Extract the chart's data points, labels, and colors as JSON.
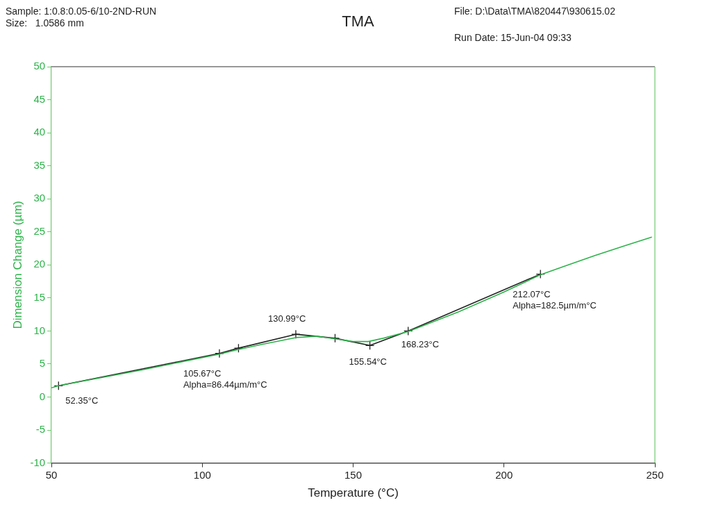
{
  "chart_data": {
    "type": "line",
    "title": "TMA",
    "xlabel": "Temperature (°C)",
    "ylabel": "Dimension Change (µm)",
    "xlim": [
      50,
      250
    ],
    "xticks": [
      50,
      100,
      150,
      200,
      250
    ],
    "ylim": [
      -10,
      50
    ],
    "yticks": [
      -10,
      -5,
      0,
      5,
      10,
      15,
      20,
      25,
      30,
      35,
      40,
      45,
      50
    ],
    "grid": false,
    "legend": false,
    "series": [
      {
        "color": "#2db34a",
        "marker": "none",
        "x": [
          50,
          52.35,
          80,
          105.67,
          112,
          120,
          131,
          138,
          144,
          150,
          155,
          160,
          168.23,
          185,
          200,
          212.07,
          220,
          230,
          240,
          249
        ],
        "values": [
          1.4,
          1.7,
          4.1,
          6.5,
          7.2,
          8.0,
          9.0,
          9.2,
          8.8,
          8.4,
          8.4,
          8.9,
          9.9,
          12.9,
          15.9,
          18.5,
          19.8,
          21.4,
          22.9,
          24.2
        ]
      },
      {
        "color": "#222222",
        "marker": "cross",
        "x": [
          52.35,
          105.67,
          112,
          130.99,
          144,
          155.54,
          168.23,
          212.07
        ],
        "values": [
          1.7,
          6.6,
          7.4,
          9.5,
          8.9,
          7.8,
          10.0,
          18.6
        ]
      }
    ],
    "annotations": [
      "Sample: 1:0.8:0.05-6/10-2ND-RUN",
      "Size:   1.0586 mm",
      "File: D:\\Data\\TMA\\820447\\930615.02",
      "Run Date: 15-Jun-04 09:33",
      {
        "text": "52.35°C",
        "x": 52.35,
        "y": 1.7
      },
      {
        "text": "105.67°C",
        "x": 105.67,
        "y": 6.6
      },
      {
        "text": "Alpha=86.44µm/m°C",
        "x": 105.67,
        "y": 6.6
      },
      {
        "text": "130.99°C",
        "x": 130.99,
        "y": 9.5
      },
      {
        "text": "155.54°C",
        "x": 155.54,
        "y": 7.8
      },
      {
        "text": "168.23°C",
        "x": 168.23,
        "y": 10.0
      },
      {
        "text": "212.07°C",
        "x": 212.07,
        "y": 18.6
      },
      {
        "text": "Alpha=182.5µm/m°C",
        "x": 212.07,
        "y": 18.6
      }
    ]
  }
}
